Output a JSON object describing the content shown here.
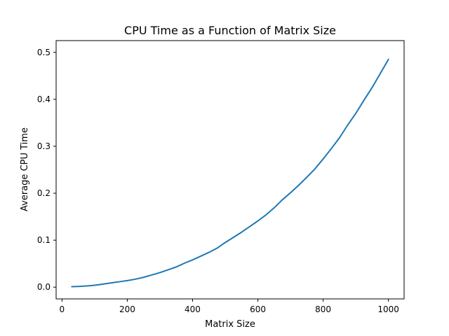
{
  "chart_data": {
    "type": "line",
    "title": "CPU Time as a Function of Matrix Size",
    "xlabel": "Matrix Size",
    "ylabel": "Average CPU Time",
    "xlim": [
      -18,
      1048
    ],
    "ylim": [
      -0.025,
      0.525
    ],
    "xticks": [
      0,
      200,
      400,
      600,
      800,
      1000
    ],
    "yticks": [
      0.0,
      0.1,
      0.2,
      0.3,
      0.4,
      0.5
    ],
    "xtick_labels": [
      "0",
      "200",
      "400",
      "600",
      "800",
      "1000"
    ],
    "ytick_labels": [
      "0.0",
      "0.1",
      "0.2",
      "0.3",
      "0.4",
      "0.5"
    ],
    "grid": false,
    "legend": "none",
    "series": [
      {
        "color": "#1f77b4",
        "x": [
          30,
          50,
          75,
          100,
          120,
          140,
          160,
          180,
          200,
          225,
          250,
          275,
          300,
          325,
          350,
          375,
          400,
          425,
          450,
          475,
          500,
          525,
          550,
          575,
          600,
          625,
          650,
          675,
          700,
          725,
          750,
          775,
          800,
          825,
          850,
          875,
          900,
          925,
          950,
          975,
          1000
        ],
        "y": [
          0.001,
          0.0015,
          0.0025,
          0.004,
          0.006,
          0.008,
          0.01,
          0.012,
          0.014,
          0.017,
          0.021,
          0.026,
          0.031,
          0.037,
          0.043,
          0.051,
          0.058,
          0.066,
          0.074,
          0.083,
          0.095,
          0.106,
          0.117,
          0.129,
          0.141,
          0.154,
          0.169,
          0.186,
          0.201,
          0.217,
          0.234,
          0.252,
          0.273,
          0.295,
          0.318,
          0.345,
          0.37,
          0.398,
          0.425,
          0.455,
          0.485
        ]
      }
    ]
  }
}
